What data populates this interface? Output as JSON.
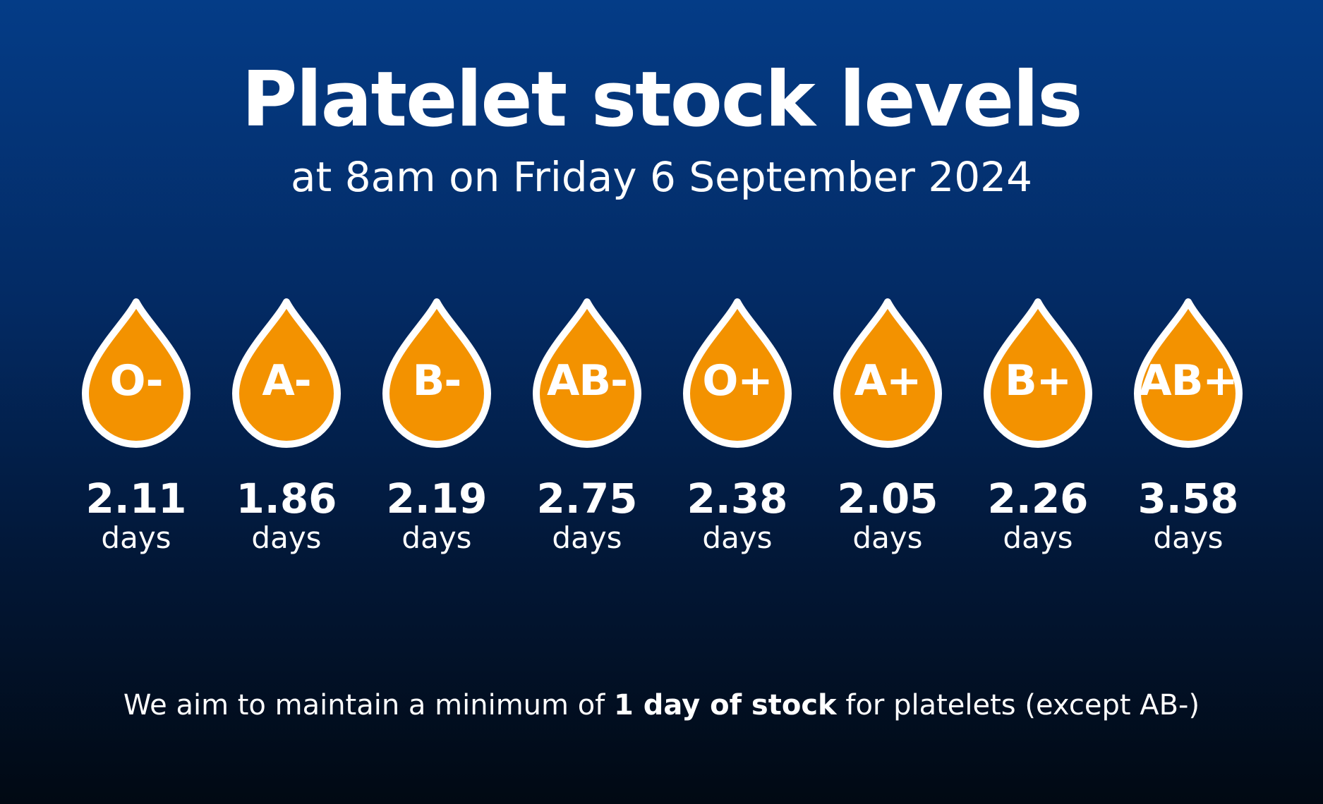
{
  "header": {
    "title": "Platelet stock levels",
    "subtitle": "at 8am on Friday 6 September 2024"
  },
  "colors": {
    "drop_fill": "#f39200",
    "drop_outline": "#ffffff",
    "background_top": "#043c87",
    "background_bottom": "#010913"
  },
  "stock": {
    "unit_label": "days",
    "items": [
      {
        "group": "O-",
        "value": "2.11"
      },
      {
        "group": "A-",
        "value": "1.86"
      },
      {
        "group": "B-",
        "value": "2.19"
      },
      {
        "group": "AB-",
        "value": "2.75"
      },
      {
        "group": "O+",
        "value": "2.38"
      },
      {
        "group": "A+",
        "value": "2.05"
      },
      {
        "group": "B+",
        "value": "2.26"
      },
      {
        "group": "AB+",
        "value": "3.58"
      }
    ]
  },
  "footer": {
    "prefix": "We aim to maintain a minimum of ",
    "emphasis": "1 day of stock",
    "suffix": " for platelets (except AB-)"
  }
}
